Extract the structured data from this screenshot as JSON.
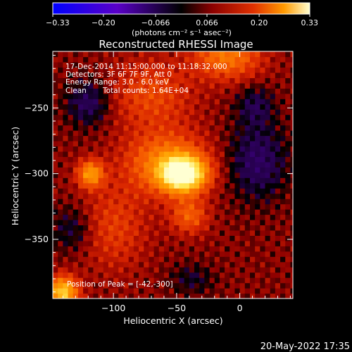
{
  "chart_data": {
    "type": "heatmap",
    "title": "Reconstructed RHESSI Image",
    "xlabel": "Heliocentric X (arcsec)",
    "ylabel": "Heliocentric Y (arcsec)",
    "xlim": [
      -148,
      42
    ],
    "ylim": [
      -395,
      -207
    ],
    "x_ticks": [
      -100,
      -50,
      0
    ],
    "y_ticks": [
      -250,
      -300,
      -350
    ],
    "x_tick_labels": [
      "−100",
      "−50",
      "0"
    ],
    "y_tick_labels": [
      "−250",
      "−300",
      "−350"
    ],
    "colorbar": {
      "range": [
        -0.33,
        0.33
      ],
      "ticks": [
        -0.33,
        -0.2,
        -0.066,
        0.066,
        0.2,
        0.33
      ],
      "tick_labels": [
        "−0.33",
        "−0.20",
        "−0.066",
        "0.066",
        "0.20",
        "0.33"
      ],
      "unit_label": "(photons cm⁻² s⁻¹ asec⁻²)",
      "colors": [
        "#0000ff",
        "#5a00c8",
        "#000000",
        "#8c0000",
        "#e03000",
        "#ff9a00",
        "#ffffd0"
      ]
    },
    "annotations": {
      "time_range": "17-Dec-2014 11:15:00.000 to 11:18:32.000",
      "detectors": "Detectors: 3F 6F 7F 9F, Att 0",
      "energy_range": "Energy Range: 3.0 - 6.0 keV",
      "method": "Clean",
      "total_counts": "Total counts: 1.64E+04",
      "peak": "Position of Peak = [-42,-300]"
    },
    "peak_position": [
      -42,
      -300
    ],
    "sources": [
      {
        "x": -45,
        "y": -300,
        "sx": 12,
        "sy": 9,
        "amp": 0.31
      },
      {
        "x": -58,
        "y": -292,
        "sx": 22,
        "sy": 16,
        "amp": 0.13
      },
      {
        "x": -118,
        "y": -300,
        "sx": 7,
        "sy": 7,
        "amp": 0.16
      },
      {
        "x": -40,
        "y": -332,
        "sx": 10,
        "sy": 9,
        "amp": 0.09
      },
      {
        "x": -10,
        "y": -210,
        "sx": 18,
        "sy": 12,
        "amp": 0.12
      },
      {
        "x": -140,
        "y": -390,
        "sx": 8,
        "sy": 8,
        "amp": 0.22
      },
      {
        "x": -70,
        "y": -240,
        "sx": 22,
        "sy": 18,
        "amp": 0.07
      },
      {
        "x": -100,
        "y": -340,
        "sx": 18,
        "sy": 22,
        "amp": 0.06
      },
      {
        "x": -120,
        "y": -246,
        "sx": 12,
        "sy": 12,
        "amp": -0.07
      },
      {
        "x": 14,
        "y": -290,
        "sx": 16,
        "sy": 20,
        "amp": -0.075
      },
      {
        "x": 12,
        "y": -248,
        "sx": 10,
        "sy": 10,
        "amp": -0.055
      },
      {
        "x": -132,
        "y": -342,
        "sx": 12,
        "sy": 12,
        "amp": -0.05
      },
      {
        "x": -38,
        "y": -380,
        "sx": 12,
        "sy": 8,
        "amp": -0.04
      }
    ],
    "background": 0.03
  },
  "footer": {
    "date": "20-May-2022 17:35"
  }
}
